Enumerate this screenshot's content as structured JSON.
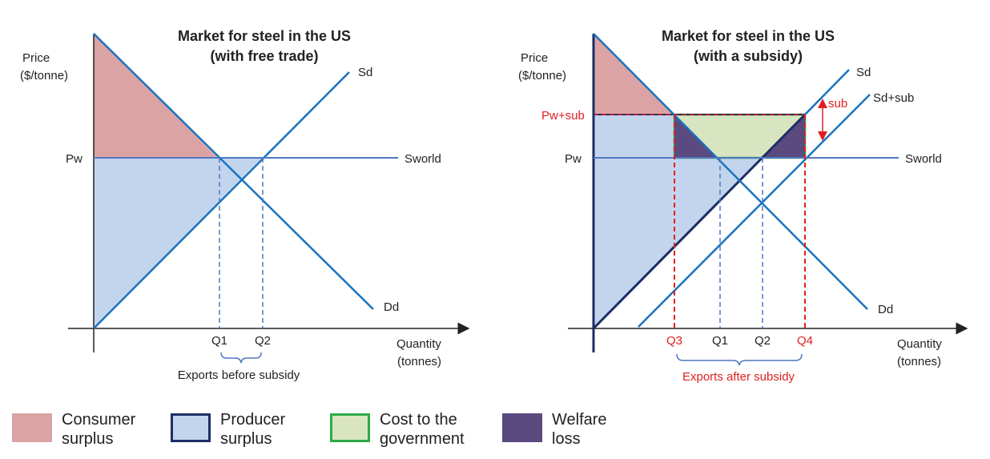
{
  "left": {
    "title_line1": "Market for steel in the US",
    "title_line2": "(with free trade)",
    "y_label1": "Price",
    "y_label2": "($/tonne)",
    "x_label1": "Quantity",
    "x_label2": "(tonnes)",
    "pw": "Pw",
    "sd": "Sd",
    "dd": "Dd",
    "sworld": "Sworld",
    "q1": "Q1",
    "q2": "Q2",
    "exports": "Exports before subsidy"
  },
  "right": {
    "title_line1": "Market for steel in the US",
    "title_line2": "(with a subsidy)",
    "y_label1": "Price",
    "y_label2": "($/tonne)",
    "x_label1": "Quantity",
    "x_label2": "(tonnes)",
    "pw_sub": "Pw+sub",
    "pw": "Pw",
    "sd": "Sd",
    "sd_sub": "Sd+sub",
    "sub": "sub",
    "dd": "Dd",
    "sworld": "Sworld",
    "q3": "Q3",
    "q1": "Q1",
    "q2": "Q2",
    "q4": "Q4",
    "exports": "Exports after subsidy"
  },
  "legend": {
    "consumer_surplus": "Consumer surplus",
    "producer_surplus": "Producer surplus",
    "cost_gov": "Cost to the government",
    "welfare_loss": "Welfare loss"
  },
  "colors": {
    "consumer_surplus": "#dba3a3",
    "producer_surplus": "#c3d4ed",
    "producer_border": "#1c2e66",
    "cost_gov": "#d9e5c0",
    "cost_border": "#2eaa4a",
    "welfare_loss": "#5a4a80",
    "curve": "#1a73bf",
    "highlight": "#e02020"
  }
}
